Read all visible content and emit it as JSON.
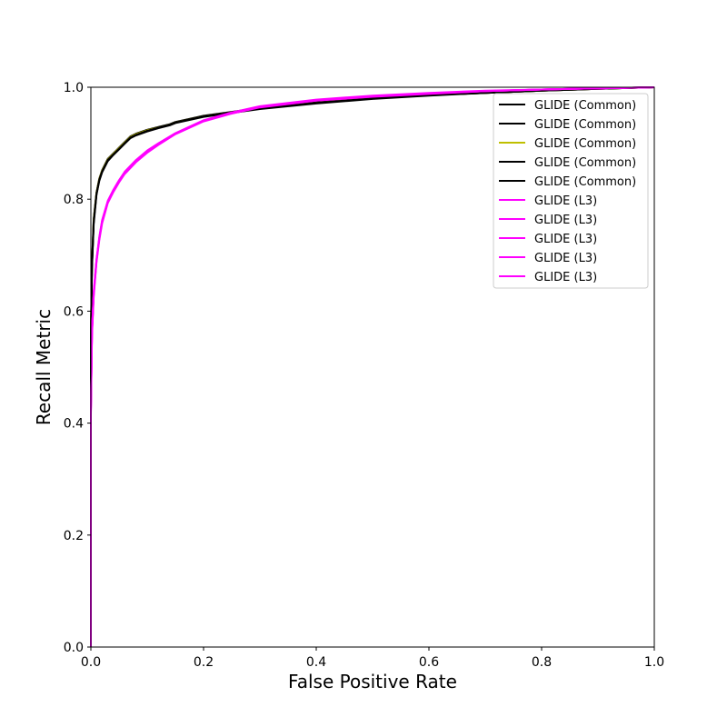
{
  "chart_data": {
    "type": "line",
    "xlabel": "False Positive Rate",
    "ylabel": "Recall Metric",
    "xlim": [
      0.0,
      1.0
    ],
    "ylim": [
      0.0,
      1.0
    ],
    "xticks": [
      "0.0",
      "0.2",
      "0.4",
      "0.6",
      "0.8",
      "1.0"
    ],
    "yticks": [
      "0.0",
      "0.2",
      "0.4",
      "0.6",
      "0.8",
      "1.0"
    ],
    "grid": false,
    "legend_position": "top-right",
    "series": [
      {
        "name": "GLIDE (Common)",
        "color": "#000000",
        "x": [
          0.0,
          0.0,
          0.002,
          0.005,
          0.01,
          0.015,
          0.02,
          0.03,
          0.04,
          0.05,
          0.06,
          0.07,
          0.08,
          0.1,
          0.12,
          0.14,
          0.15,
          0.2,
          0.25,
          0.3,
          0.4,
          0.5,
          0.6,
          0.7,
          0.8,
          0.9,
          1.0
        ],
        "y": [
          0.0,
          0.55,
          0.68,
          0.76,
          0.81,
          0.835,
          0.85,
          0.87,
          0.88,
          0.89,
          0.9,
          0.91,
          0.915,
          0.922,
          0.928,
          0.933,
          0.937,
          0.948,
          0.955,
          0.962,
          0.972,
          0.98,
          0.986,
          0.99,
          0.994,
          0.997,
          1.0
        ]
      },
      {
        "name": "GLIDE (Common)",
        "color": "#000000",
        "x": [
          0.0,
          0.0,
          0.002,
          0.005,
          0.01,
          0.015,
          0.02,
          0.03,
          0.04,
          0.05,
          0.06,
          0.07,
          0.08,
          0.1,
          0.12,
          0.14,
          0.15,
          0.2,
          0.25,
          0.3,
          0.4,
          0.5,
          0.6,
          0.7,
          0.8,
          0.9,
          1.0
        ],
        "y": [
          0.0,
          0.56,
          0.685,
          0.765,
          0.812,
          0.837,
          0.852,
          0.872,
          0.882,
          0.892,
          0.902,
          0.912,
          0.917,
          0.924,
          0.929,
          0.934,
          0.938,
          0.949,
          0.956,
          0.963,
          0.973,
          0.981,
          0.987,
          0.991,
          0.995,
          0.998,
          1.0
        ]
      },
      {
        "name": "GLIDE (Common)",
        "color": "#bfbf00",
        "x": [
          0.0,
          0.0,
          0.002,
          0.005,
          0.01,
          0.015,
          0.02,
          0.03,
          0.04,
          0.05,
          0.06,
          0.07,
          0.08,
          0.1,
          0.12,
          0.14,
          0.15,
          0.2,
          0.25,
          0.3,
          0.4,
          0.5,
          0.6,
          0.7,
          0.8,
          0.9,
          1.0
        ],
        "y": [
          0.0,
          0.555,
          0.682,
          0.762,
          0.811,
          0.836,
          0.851,
          0.871,
          0.881,
          0.891,
          0.901,
          0.911,
          0.916,
          0.923,
          0.928,
          0.933,
          0.937,
          0.948,
          0.955,
          0.962,
          0.972,
          0.98,
          0.986,
          0.99,
          0.994,
          0.997,
          1.0
        ]
      },
      {
        "name": "GLIDE (Common)",
        "color": "#000000",
        "x": [
          0.0,
          0.0,
          0.002,
          0.005,
          0.01,
          0.015,
          0.02,
          0.03,
          0.04,
          0.05,
          0.06,
          0.07,
          0.08,
          0.1,
          0.12,
          0.14,
          0.15,
          0.2,
          0.25,
          0.3,
          0.4,
          0.5,
          0.6,
          0.7,
          0.8,
          0.9,
          1.0
        ],
        "y": [
          0.0,
          0.545,
          0.675,
          0.755,
          0.808,
          0.833,
          0.848,
          0.868,
          0.879,
          0.889,
          0.899,
          0.909,
          0.914,
          0.921,
          0.927,
          0.932,
          0.936,
          0.947,
          0.954,
          0.961,
          0.971,
          0.979,
          0.985,
          0.99,
          0.994,
          0.997,
          1.0
        ]
      },
      {
        "name": "GLIDE (Common)",
        "color": "#000000",
        "x": [
          0.0,
          0.0,
          0.002,
          0.005,
          0.01,
          0.015,
          0.02,
          0.03,
          0.04,
          0.05,
          0.06,
          0.07,
          0.08,
          0.1,
          0.12,
          0.14,
          0.15,
          0.2,
          0.25,
          0.3,
          0.4,
          0.5,
          0.6,
          0.7,
          0.8,
          0.9,
          1.0
        ],
        "y": [
          0.0,
          0.55,
          0.68,
          0.76,
          0.81,
          0.835,
          0.85,
          0.87,
          0.88,
          0.89,
          0.9,
          0.91,
          0.915,
          0.922,
          0.928,
          0.933,
          0.937,
          0.948,
          0.955,
          0.962,
          0.972,
          0.98,
          0.986,
          0.99,
          0.994,
          0.997,
          1.0
        ]
      },
      {
        "name": "GLIDE (L3)",
        "color": "#ff00ff",
        "x": [
          0.0,
          0.0,
          0.002,
          0.005,
          0.01,
          0.015,
          0.02,
          0.03,
          0.04,
          0.05,
          0.06,
          0.08,
          0.1,
          0.12,
          0.15,
          0.2,
          0.25,
          0.3,
          0.4,
          0.5,
          0.6,
          0.7,
          0.8,
          0.9,
          1.0
        ],
        "y": [
          0.0,
          0.42,
          0.56,
          0.63,
          0.69,
          0.73,
          0.76,
          0.795,
          0.815,
          0.832,
          0.847,
          0.868,
          0.885,
          0.899,
          0.917,
          0.94,
          0.954,
          0.965,
          0.977,
          0.984,
          0.989,
          0.993,
          0.996,
          0.998,
          1.0
        ]
      },
      {
        "name": "GLIDE (L3)",
        "color": "#ff00ff",
        "x": [
          0.0,
          0.0,
          0.002,
          0.005,
          0.01,
          0.015,
          0.02,
          0.03,
          0.04,
          0.05,
          0.06,
          0.08,
          0.1,
          0.12,
          0.15,
          0.2,
          0.25,
          0.3,
          0.4,
          0.5,
          0.6,
          0.7,
          0.8,
          0.9,
          1.0
        ],
        "y": [
          0.0,
          0.425,
          0.565,
          0.635,
          0.693,
          0.733,
          0.763,
          0.797,
          0.817,
          0.834,
          0.849,
          0.87,
          0.887,
          0.9,
          0.918,
          0.941,
          0.955,
          0.966,
          0.978,
          0.985,
          0.99,
          0.994,
          0.996,
          0.998,
          1.0
        ]
      },
      {
        "name": "GLIDE (L3)",
        "color": "#ff00ff",
        "x": [
          0.0,
          0.0,
          0.002,
          0.005,
          0.01,
          0.015,
          0.02,
          0.03,
          0.04,
          0.05,
          0.06,
          0.08,
          0.1,
          0.12,
          0.15,
          0.2,
          0.25,
          0.3,
          0.4,
          0.5,
          0.6,
          0.7,
          0.8,
          0.9,
          1.0
        ],
        "y": [
          0.0,
          0.415,
          0.555,
          0.625,
          0.687,
          0.727,
          0.757,
          0.793,
          0.813,
          0.83,
          0.845,
          0.866,
          0.883,
          0.897,
          0.916,
          0.939,
          0.953,
          0.964,
          0.976,
          0.983,
          0.988,
          0.993,
          0.996,
          0.998,
          1.0
        ]
      },
      {
        "name": "GLIDE (L3)",
        "color": "#ff00ff",
        "x": [
          0.0,
          0.0,
          0.002,
          0.005,
          0.01,
          0.015,
          0.02,
          0.03,
          0.04,
          0.05,
          0.06,
          0.08,
          0.1,
          0.12,
          0.15,
          0.2,
          0.25,
          0.3,
          0.4,
          0.5,
          0.6,
          0.7,
          0.8,
          0.9,
          1.0
        ],
        "y": [
          0.0,
          0.42,
          0.56,
          0.63,
          0.69,
          0.73,
          0.76,
          0.795,
          0.815,
          0.832,
          0.847,
          0.868,
          0.885,
          0.899,
          0.917,
          0.94,
          0.954,
          0.965,
          0.977,
          0.984,
          0.989,
          0.993,
          0.996,
          0.998,
          1.0
        ]
      },
      {
        "name": "GLIDE (L3)",
        "color": "#ff00ff",
        "x": [
          0.0,
          0.0,
          0.002,
          0.005,
          0.01,
          0.015,
          0.02,
          0.03,
          0.04,
          0.05,
          0.06,
          0.08,
          0.1,
          0.12,
          0.15,
          0.2,
          0.25,
          0.3,
          0.4,
          0.5,
          0.6,
          0.7,
          0.8,
          0.9,
          1.0
        ],
        "y": [
          0.0,
          0.422,
          0.562,
          0.632,
          0.691,
          0.731,
          0.761,
          0.796,
          0.816,
          0.833,
          0.848,
          0.869,
          0.886,
          0.899,
          0.917,
          0.94,
          0.954,
          0.965,
          0.977,
          0.984,
          0.989,
          0.993,
          0.996,
          0.998,
          1.0
        ]
      }
    ]
  }
}
